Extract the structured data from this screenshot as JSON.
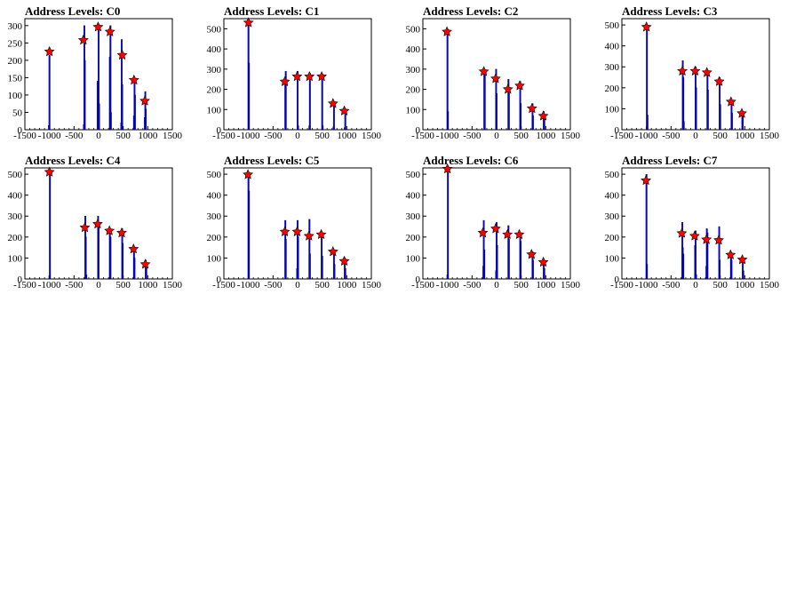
{
  "chart_data": [
    {
      "type": "histogram",
      "title": "Address Levels: C0",
      "xlim": [
        -1500,
        1500
      ],
      "ylim": [
        0,
        320
      ],
      "xticks": [
        -1500,
        -1000,
        -500,
        0,
        500,
        1000,
        1500
      ],
      "yticks": [
        0,
        50,
        100,
        150,
        200,
        250,
        300
      ],
      "bars": [
        {
          "x": -1000,
          "y": 215
        },
        {
          "x": -1010,
          "y": 12
        },
        {
          "x": -290,
          "y": 300
        },
        {
          "x": -280,
          "y": 200
        },
        {
          "x": -300,
          "y": 15
        },
        {
          "x": -20,
          "y": 140
        },
        {
          "x": 0,
          "y": 305
        },
        {
          "x": 10,
          "y": 75
        },
        {
          "x": 230,
          "y": 210
        },
        {
          "x": 240,
          "y": 300
        },
        {
          "x": 250,
          "y": 50
        },
        {
          "x": 470,
          "y": 260
        },
        {
          "x": 480,
          "y": 130
        },
        {
          "x": 460,
          "y": 20
        },
        {
          "x": 730,
          "y": 150
        },
        {
          "x": 740,
          "y": 100
        },
        {
          "x": 720,
          "y": 40
        },
        {
          "x": 950,
          "y": 110
        },
        {
          "x": 960,
          "y": 60
        },
        {
          "x": 940,
          "y": 35
        }
      ],
      "peaks": [
        {
          "x": -1000,
          "y": 225
        },
        {
          "x": -310,
          "y": 258
        },
        {
          "x": -10,
          "y": 296
        },
        {
          "x": 230,
          "y": 282
        },
        {
          "x": 480,
          "y": 215
        },
        {
          "x": 720,
          "y": 143
        },
        {
          "x": 940,
          "y": 83
        }
      ]
    },
    {
      "type": "histogram",
      "title": "Address Levels: C1",
      "xlim": [
        -1500,
        1500
      ],
      "ylim": [
        0,
        550
      ],
      "xticks": [
        -1500,
        -1000,
        -500,
        0,
        500,
        1000,
        1500
      ],
      "yticks": [
        0,
        100,
        200,
        300,
        400,
        500
      ],
      "bars": [
        {
          "x": -1000,
          "y": 540
        },
        {
          "x": -990,
          "y": 330
        },
        {
          "x": -240,
          "y": 290
        },
        {
          "x": -250,
          "y": 230
        },
        {
          "x": 0,
          "y": 290
        },
        {
          "x": 10,
          "y": 20
        },
        {
          "x": 250,
          "y": 280
        },
        {
          "x": 240,
          "y": 20
        },
        {
          "x": 500,
          "y": 275
        },
        {
          "x": 510,
          "y": 20
        },
        {
          "x": 740,
          "y": 140
        },
        {
          "x": 730,
          "y": 15
        },
        {
          "x": 970,
          "y": 100
        },
        {
          "x": 960,
          "y": 10
        }
      ],
      "peaks": [
        {
          "x": -1000,
          "y": 530
        },
        {
          "x": -260,
          "y": 238
        },
        {
          "x": -10,
          "y": 263
        },
        {
          "x": 240,
          "y": 263
        },
        {
          "x": 490,
          "y": 263
        },
        {
          "x": 720,
          "y": 130
        },
        {
          "x": 950,
          "y": 93
        }
      ]
    },
    {
      "type": "histogram",
      "title": "Address Levels: C2",
      "xlim": [
        -1500,
        1500
      ],
      "ylim": [
        0,
        550
      ],
      "xticks": [
        -1500,
        -1000,
        -500,
        0,
        500,
        1000,
        1500
      ],
      "yticks": [
        0,
        100,
        200,
        300,
        400,
        500
      ],
      "bars": [
        {
          "x": -1000,
          "y": 500
        },
        {
          "x": -990,
          "y": 90
        },
        {
          "x": -250,
          "y": 300
        },
        {
          "x": -240,
          "y": 270
        },
        {
          "x": -10,
          "y": 300
        },
        {
          "x": 0,
          "y": 180
        },
        {
          "x": 240,
          "y": 250
        },
        {
          "x": 250,
          "y": 180
        },
        {
          "x": 480,
          "y": 240
        },
        {
          "x": 490,
          "y": 130
        },
        {
          "x": 730,
          "y": 130
        },
        {
          "x": 740,
          "y": 70
        },
        {
          "x": 960,
          "y": 90
        },
        {
          "x": 970,
          "y": 50
        }
      ],
      "peaks": [
        {
          "x": -1010,
          "y": 485
        },
        {
          "x": -260,
          "y": 288
        },
        {
          "x": -20,
          "y": 253
        },
        {
          "x": 230,
          "y": 200
        },
        {
          "x": 470,
          "y": 218
        },
        {
          "x": 720,
          "y": 105
        },
        {
          "x": 950,
          "y": 68
        }
      ]
    },
    {
      "type": "histogram",
      "title": "Address Levels: C3",
      "xlim": [
        -1500,
        1500
      ],
      "ylim": [
        0,
        530
      ],
      "xticks": [
        -1500,
        -1000,
        -500,
        0,
        500,
        1000,
        1500
      ],
      "yticks": [
        0,
        100,
        200,
        300,
        400,
        500
      ],
      "bars": [
        {
          "x": -990,
          "y": 500
        },
        {
          "x": -980,
          "y": 70
        },
        {
          "x": -260,
          "y": 330
        },
        {
          "x": -250,
          "y": 250
        },
        {
          "x": -240,
          "y": 40
        },
        {
          "x": 0,
          "y": 300
        },
        {
          "x": 10,
          "y": 200
        },
        {
          "x": 240,
          "y": 280
        },
        {
          "x": 250,
          "y": 190
        },
        {
          "x": 490,
          "y": 250
        },
        {
          "x": 500,
          "y": 120
        },
        {
          "x": 730,
          "y": 140
        },
        {
          "x": 740,
          "y": 80
        },
        {
          "x": 950,
          "y": 90
        },
        {
          "x": 960,
          "y": 60
        }
      ],
      "peaks": [
        {
          "x": -1000,
          "y": 490
        },
        {
          "x": -270,
          "y": 280
        },
        {
          "x": -10,
          "y": 280
        },
        {
          "x": 230,
          "y": 273
        },
        {
          "x": 480,
          "y": 230
        },
        {
          "x": 720,
          "y": 133
        },
        {
          "x": 940,
          "y": 78
        }
      ]
    },
    {
      "type": "histogram",
      "title": "Address Levels: C4",
      "xlim": [
        -1500,
        1500
      ],
      "ylim": [
        0,
        530
      ],
      "xticks": [
        -1500,
        -1000,
        -500,
        0,
        500,
        1000,
        1500
      ],
      "yticks": [
        0,
        100,
        200,
        300,
        400,
        500
      ],
      "bars": [
        {
          "x": -990,
          "y": 520
        },
        {
          "x": -1000,
          "y": 15
        },
        {
          "x": -270,
          "y": 300
        },
        {
          "x": -260,
          "y": 200
        },
        {
          "x": -250,
          "y": 20
        },
        {
          "x": -10,
          "y": 300
        },
        {
          "x": 0,
          "y": 250
        },
        {
          "x": 230,
          "y": 240
        },
        {
          "x": 240,
          "y": 200
        },
        {
          "x": 480,
          "y": 240
        },
        {
          "x": 490,
          "y": 170
        },
        {
          "x": 720,
          "y": 150
        },
        {
          "x": 730,
          "y": 100
        },
        {
          "x": 960,
          "y": 90
        },
        {
          "x": 970,
          "y": 60
        }
      ],
      "peaks": [
        {
          "x": -1000,
          "y": 510
        },
        {
          "x": -280,
          "y": 245
        },
        {
          "x": -20,
          "y": 262
        },
        {
          "x": 220,
          "y": 230
        },
        {
          "x": 470,
          "y": 220
        },
        {
          "x": 710,
          "y": 143
        },
        {
          "x": 950,
          "y": 70
        }
      ]
    },
    {
      "type": "histogram",
      "title": "Address Levels: C5",
      "xlim": [
        -1500,
        1500
      ],
      "ylim": [
        0,
        530
      ],
      "xticks": [
        -1500,
        -1000,
        -500,
        0,
        500,
        1000,
        1500
      ],
      "yticks": [
        0,
        100,
        200,
        300,
        400,
        500
      ],
      "bars": [
        {
          "x": -1000,
          "y": 510
        },
        {
          "x": -990,
          "y": 420
        },
        {
          "x": -250,
          "y": 280
        },
        {
          "x": -240,
          "y": 190
        },
        {
          "x": 0,
          "y": 280
        },
        {
          "x": 10,
          "y": 200
        },
        {
          "x": -10,
          "y": 50
        },
        {
          "x": 240,
          "y": 285
        },
        {
          "x": 250,
          "y": 120
        },
        {
          "x": 490,
          "y": 220
        },
        {
          "x": 500,
          "y": 110
        },
        {
          "x": 740,
          "y": 130
        },
        {
          "x": 750,
          "y": 70
        },
        {
          "x": 960,
          "y": 100
        },
        {
          "x": 970,
          "y": 50
        }
      ],
      "peaks": [
        {
          "x": -1010,
          "y": 498
        },
        {
          "x": -260,
          "y": 225
        },
        {
          "x": -10,
          "y": 225
        },
        {
          "x": 230,
          "y": 205
        },
        {
          "x": 480,
          "y": 212
        },
        {
          "x": 720,
          "y": 130
        },
        {
          "x": 950,
          "y": 85
        }
      ]
    },
    {
      "type": "histogram",
      "title": "Address Levels: C6",
      "xlim": [
        -1500,
        1500
      ],
      "ylim": [
        0,
        530
      ],
      "xticks": [
        -1500,
        -1000,
        -500,
        0,
        500,
        1000,
        1500
      ],
      "yticks": [
        0,
        100,
        200,
        300,
        400,
        500
      ],
      "bars": [
        {
          "x": -990,
          "y": 530
        },
        {
          "x": -1000,
          "y": 20
        },
        {
          "x": -260,
          "y": 280
        },
        {
          "x": -250,
          "y": 140
        },
        {
          "x": -270,
          "y": 60
        },
        {
          "x": 0,
          "y": 270
        },
        {
          "x": 10,
          "y": 160
        },
        {
          "x": -10,
          "y": 40
        },
        {
          "x": 240,
          "y": 255
        },
        {
          "x": 250,
          "y": 190
        },
        {
          "x": 480,
          "y": 220
        },
        {
          "x": 490,
          "y": 180
        },
        {
          "x": 730,
          "y": 130
        },
        {
          "x": 740,
          "y": 90
        },
        {
          "x": 960,
          "y": 95
        },
        {
          "x": 970,
          "y": 50
        }
      ],
      "peaks": [
        {
          "x": -1000,
          "y": 525
        },
        {
          "x": -280,
          "y": 220
        },
        {
          "x": -20,
          "y": 240
        },
        {
          "x": 220,
          "y": 212
        },
        {
          "x": 460,
          "y": 212
        },
        {
          "x": 710,
          "y": 117
        },
        {
          "x": 950,
          "y": 80
        }
      ]
    },
    {
      "type": "histogram",
      "title": "Address Levels: C7",
      "xlim": [
        -1500,
        1500
      ],
      "ylim": [
        0,
        530
      ],
      "xticks": [
        -1500,
        -1000,
        -500,
        0,
        500,
        1000,
        1500
      ],
      "yticks": [
        0,
        100,
        200,
        300,
        400,
        500
      ],
      "bars": [
        {
          "x": -1000,
          "y": 500
        },
        {
          "x": -990,
          "y": 70
        },
        {
          "x": -270,
          "y": 270
        },
        {
          "x": -260,
          "y": 150
        },
        {
          "x": -250,
          "y": 120
        },
        {
          "x": 0,
          "y": 230
        },
        {
          "x": -10,
          "y": 160
        },
        {
          "x": 10,
          "y": 20
        },
        {
          "x": 230,
          "y": 240
        },
        {
          "x": 240,
          "y": 220
        },
        {
          "x": 220,
          "y": 60
        },
        {
          "x": 480,
          "y": 250
        },
        {
          "x": 490,
          "y": 90
        },
        {
          "x": 720,
          "y": 120
        },
        {
          "x": 730,
          "y": 90
        },
        {
          "x": 960,
          "y": 95
        },
        {
          "x": 970,
          "y": 40
        }
      ],
      "peaks": [
        {
          "x": -1010,
          "y": 470
        },
        {
          "x": -280,
          "y": 218
        },
        {
          "x": -20,
          "y": 205
        },
        {
          "x": 220,
          "y": 188
        },
        {
          "x": 470,
          "y": 185
        },
        {
          "x": 710,
          "y": 115
        },
        {
          "x": 950,
          "y": 92
        }
      ]
    }
  ],
  "colors": {
    "bar": "#0000ff",
    "bar_outline": "#000000",
    "marker_fill": "#ff0000",
    "marker_stroke": "#000000",
    "axis": "#000000",
    "background": "#ffffff"
  }
}
